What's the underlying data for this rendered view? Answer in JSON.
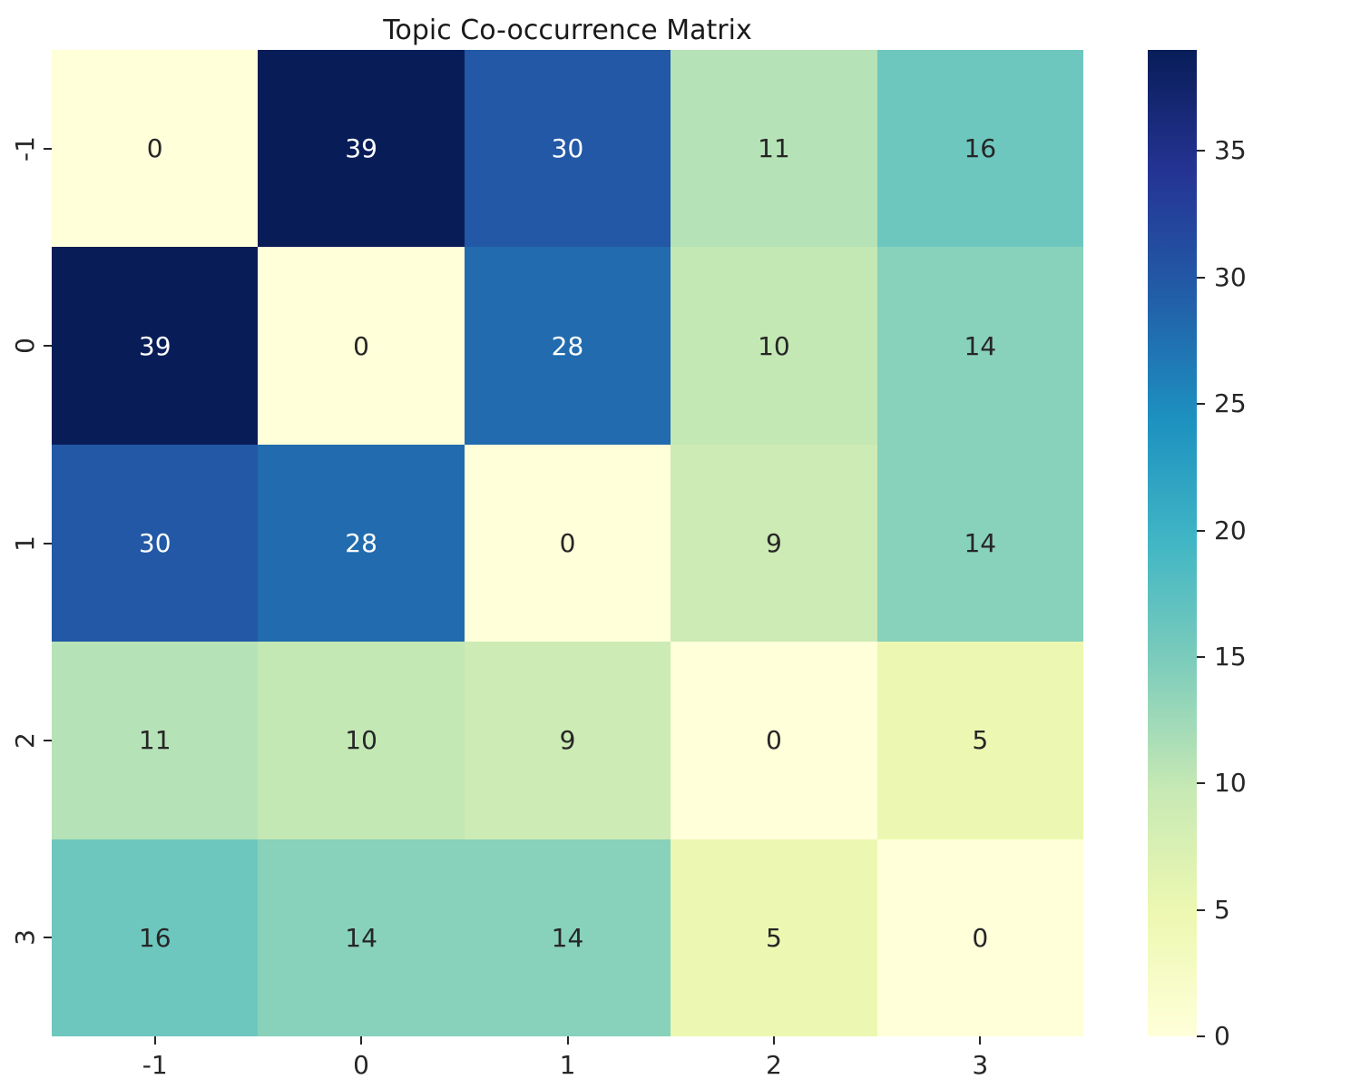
{
  "chart_data": {
    "type": "heatmap",
    "title": "Topic Co-occurrence Matrix",
    "x_tick_labels": [
      "-1",
      "0",
      "1",
      "2",
      "3"
    ],
    "y_tick_labels": [
      "-1",
      "0",
      "1",
      "2",
      "3"
    ],
    "matrix": [
      [
        0,
        39,
        30,
        11,
        16
      ],
      [
        39,
        0,
        28,
        10,
        14
      ],
      [
        30,
        28,
        0,
        9,
        14
      ],
      [
        11,
        10,
        9,
        0,
        5
      ],
      [
        16,
        14,
        14,
        5,
        0
      ]
    ],
    "annotated": true,
    "vmin": 0,
    "vmax": 39,
    "colormap": "YlGnBu",
    "colormap_stops": [
      {
        "pos": 0.0,
        "color": "#ffffd9"
      },
      {
        "pos": 0.125,
        "color": "#edf8b1"
      },
      {
        "pos": 0.25,
        "color": "#c7e9b4"
      },
      {
        "pos": 0.375,
        "color": "#7fcdbb"
      },
      {
        "pos": 0.5,
        "color": "#41b6c4"
      },
      {
        "pos": 0.625,
        "color": "#1d91c0"
      },
      {
        "pos": 0.75,
        "color": "#225ea8"
      },
      {
        "pos": 0.875,
        "color": "#253494"
      },
      {
        "pos": 1.0,
        "color": "#081d58"
      }
    ],
    "colorbar": {
      "position": "right",
      "ticks": [
        0,
        5,
        10,
        15,
        20,
        25,
        30,
        35
      ]
    },
    "grid": false,
    "background_color": "#ffffff",
    "annotation_color_dark": "#262626",
    "annotation_color_light": "#ffffff",
    "tick_color": "#262626"
  }
}
